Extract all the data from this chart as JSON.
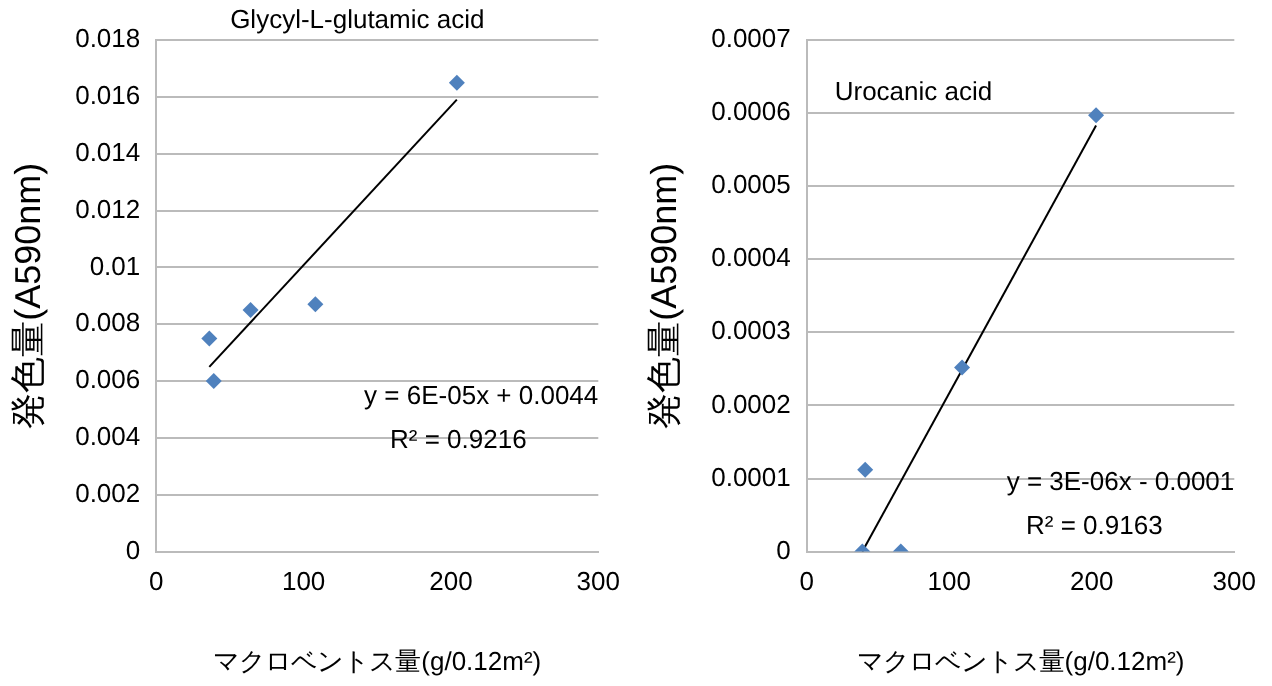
{
  "chart_data": [
    {
      "type": "scatter",
      "title": "Glycyl-L-glutamic acid",
      "xlabel": "マクロベントス量(g/0.12m²)",
      "ylabel": "発色量(A590nm)",
      "xlim": [
        0,
        300
      ],
      "xticks": [
        0,
        100,
        200,
        300
      ],
      "ylim": [
        0,
        0.018
      ],
      "yticks": [
        0,
        0.002,
        0.004,
        0.006,
        0.008,
        0.01,
        0.012,
        0.014,
        0.016,
        0.018
      ],
      "grid": "y",
      "annotations": [
        "y = 6E-05x + 0.0044",
        "R² = 0.9216"
      ],
      "series": [
        {
          "color": "#4f81bd",
          "marker": "diamond",
          "x": [
            36,
            39,
            64,
            108,
            204
          ],
          "values": [
            0.0075,
            0.006,
            0.0085,
            0.0087,
            0.0165
          ]
        },
        {
          "type": "line",
          "color": "#000000",
          "marker": "none",
          "x": [
            36,
            204
          ],
          "values": [
            0.0065,
            0.0159
          ]
        }
      ]
    },
    {
      "type": "scatter",
      "title": "Urocanic acid",
      "xlabel": "マクロベントス量(g/0.12m²)",
      "ylabel": "発色量(A590nm)",
      "xlim": [
        0,
        300
      ],
      "xticks": [
        0,
        100,
        200,
        300
      ],
      "ylim": [
        0,
        0.0007
      ],
      "yticks": [
        0,
        0.0001,
        0.0002,
        0.0003,
        0.0004,
        0.0005,
        0.0006,
        0.0007
      ],
      "grid": "y",
      "annotations": [
        "y = 3E-06x - 0.0001",
        "R² = 0.9163"
      ],
      "series": [
        {
          "color": "#4f81bd",
          "marker": "diamond",
          "x": [
            39,
            41,
            66,
            109,
            203
          ],
          "values": [
            0,
            0.000112,
            0,
            0.000252,
            0.000597
          ]
        },
        {
          "type": "line",
          "color": "#000000",
          "marker": "none",
          "x": [
            39,
            203
          ],
          "values": [
            0,
            0.000583
          ]
        }
      ]
    }
  ]
}
